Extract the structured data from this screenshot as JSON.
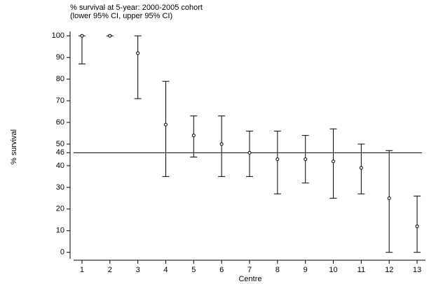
{
  "chart_data": {
    "type": "errorbar",
    "title": "% survival at 5-year: 2000-2005 cohort",
    "subtitle": "(lower 95% CI, upper 95% CI)",
    "x_label": "Centre",
    "y_label": "% survival",
    "x": [
      1,
      2,
      3,
      4,
      5,
      6,
      7,
      8,
      9,
      10,
      11,
      12,
      13
    ],
    "values": [
      100,
      100,
      92,
      59,
      54,
      50,
      46,
      43,
      43,
      42,
      39,
      25,
      12
    ],
    "lower": [
      87,
      100,
      71,
      35,
      44,
      35,
      35,
      27,
      32,
      25,
      27,
      0,
      0
    ],
    "upper": [
      100,
      100,
      100,
      79,
      63,
      63,
      56,
      56,
      54,
      57,
      50,
      47,
      26
    ],
    "reference_line": 46,
    "color": "#000000",
    "xlim": [
      0.7,
      13.3
    ],
    "xticks": [
      1,
      2,
      3,
      4,
      5,
      6,
      7,
      8,
      9,
      10,
      11,
      12,
      13
    ],
    "ylim": [
      -3,
      102
    ],
    "yticks": [
      0,
      10,
      20,
      30,
      40,
      46,
      50,
      60,
      70,
      80,
      90,
      100
    ]
  }
}
